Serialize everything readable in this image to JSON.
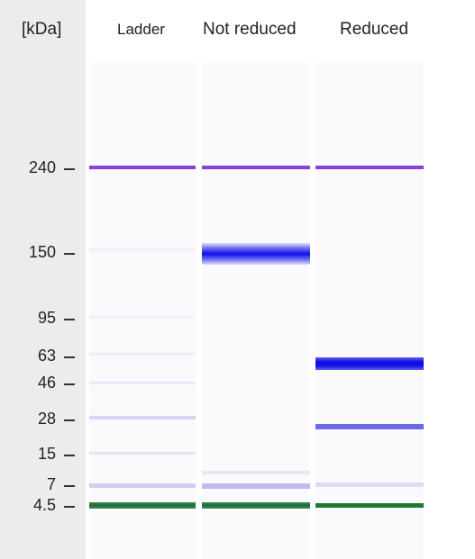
{
  "axis": {
    "unit_label": "[kDa]",
    "ticks": [
      "240",
      "150",
      "95",
      "63",
      "46",
      "28",
      "15",
      "7",
      "4.5"
    ]
  },
  "lanes": {
    "ladder_label": "Ladder",
    "not_reduced_label": "Not reduced",
    "reduced_label": "Reduced"
  },
  "colors": {
    "upper_marker": "#8a3fd8",
    "lower_marker": "#1f6b3a",
    "protein_band": "#1010e6",
    "faint_band": "#bcbcf0",
    "axis_panel": "#ececec"
  }
}
